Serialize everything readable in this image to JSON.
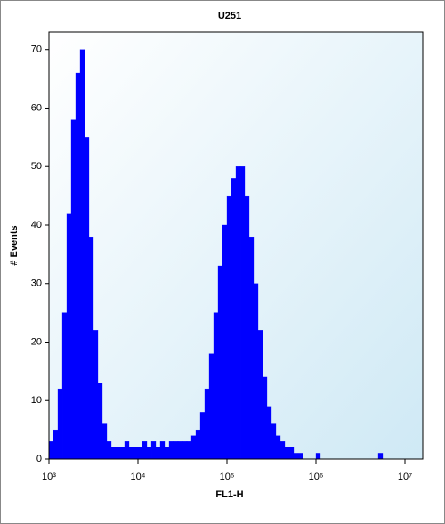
{
  "chart_data": {
    "type": "histogram",
    "title": "U251",
    "x_label": "FL1-H",
    "y_label": "# Events",
    "xscale": "log",
    "grid": false,
    "color": "#0000ff",
    "xlim": [
      1000,
      15850000
    ],
    "ylim": [
      0,
      73
    ],
    "xticks": [
      {
        "value": 1000,
        "label": "10³"
      },
      {
        "value": 10000,
        "label": "10⁴"
      },
      {
        "value": 100000,
        "label": "10⁵"
      },
      {
        "value": 1000000,
        "label": "10⁶"
      },
      {
        "value": 10000000,
        "label": "10⁷"
      }
    ],
    "yticks": [
      0,
      10,
      20,
      30,
      40,
      50,
      60,
      70
    ],
    "bins": [
      1000,
      1122,
      1259,
      1413,
      1585,
      1778,
      1995,
      2239,
      2512,
      2818,
      3162,
      3548,
      3981,
      4467,
      5012,
      5623,
      6310,
      7079,
      7943,
      8913,
      10000,
      11220,
      12590,
      14130,
      15850,
      17780,
      19950,
      22390,
      25120,
      28180,
      31620,
      35480,
      39810,
      44670,
      50120,
      56230,
      63100,
      70790,
      79430,
      89130,
      100000,
      112200,
      125900,
      141300,
      158500,
      177800,
      199500,
      223900,
      251200,
      281800,
      316200,
      354800,
      398100,
      446700,
      501200,
      562300,
      631000,
      707900,
      794300,
      891300,
      1000000,
      1122000,
      1259000,
      1413000,
      1585000,
      1778000,
      1995000,
      2239000,
      2512000,
      2818000,
      3162000,
      3548000,
      3981000,
      4467000,
      5012000,
      5623000,
      6310000,
      7079000,
      7943000,
      8913000,
      10000000,
      11220000,
      12590000,
      14130000,
      15850000
    ],
    "values": [
      3,
      5,
      12,
      25,
      42,
      58,
      66,
      70,
      55,
      38,
      22,
      13,
      6,
      3,
      2,
      2,
      2,
      3,
      2,
      2,
      2,
      3,
      2,
      3,
      2,
      3,
      2,
      3,
      3,
      3,
      3,
      3,
      4,
      5,
      8,
      12,
      18,
      25,
      33,
      40,
      45,
      48,
      50,
      50,
      45,
      38,
      30,
      22,
      14,
      9,
      6,
      4,
      3,
      2,
      2,
      1,
      1,
      0,
      0,
      0,
      1,
      0,
      0,
      0,
      0,
      0,
      0,
      0,
      0,
      0,
      0,
      0,
      0,
      0,
      1,
      0,
      0,
      0,
      0,
      0,
      0,
      0,
      0,
      0
    ]
  }
}
